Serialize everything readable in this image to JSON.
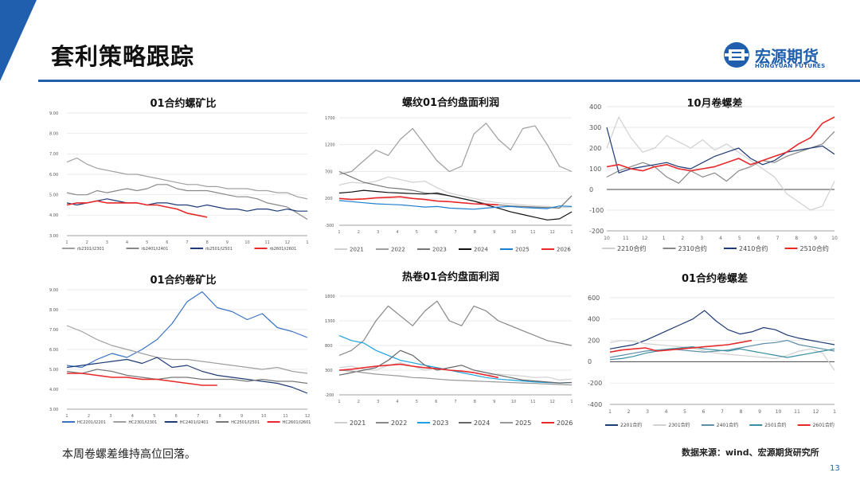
{
  "header": {
    "title": "套利策略跟踪",
    "logo_name": "宏源期货",
    "logo_sub": "HONGYUAN FUTURES",
    "accent_color": "#1f5fae"
  },
  "footer": {
    "note": "本周卷螺差维持高位回落。",
    "source": "数据来源：wind、宏源期货研究所",
    "page_number": "13"
  },
  "chart_data": [
    {
      "id": "c1",
      "type": "line",
      "title": "01合约螺矿比",
      "y_ticks": [
        "9.00",
        "8.00",
        "7.00",
        "6.00",
        "5.00",
        "4.00",
        "3.00"
      ],
      "ylim": [
        3,
        9
      ],
      "x_ticks": [
        "1",
        "2",
        "3",
        "4",
        "5",
        "6",
        "7",
        "8",
        "9",
        "10",
        "11",
        "12",
        "1"
      ],
      "series": [
        {
          "name": "rb2301/i2301",
          "color": "#a0a0a0",
          "values": [
            6.6,
            6.8,
            6.5,
            6.3,
            6.2,
            6.1,
            6.0,
            6.0,
            5.9,
            5.8,
            5.7,
            5.6,
            5.5,
            5.5,
            5.4,
            5.4,
            5.3,
            5.3,
            5.3,
            5.2,
            5.2,
            5.1,
            5.1,
            4.9,
            4.8
          ]
        },
        {
          "name": "rb2401/i2401",
          "color": "#888888",
          "values": [
            5.1,
            5.0,
            5.0,
            5.2,
            5.1,
            5.2,
            5.3,
            5.2,
            5.3,
            5.5,
            5.5,
            5.3,
            5.2,
            5.2,
            5.2,
            5.1,
            5.0,
            4.9,
            4.9,
            4.8,
            4.6,
            4.5,
            4.4,
            4.1,
            3.8
          ]
        },
        {
          "name": "rb2501/i2501",
          "color": "#1f3a75",
          "values": [
            4.6,
            4.5,
            4.6,
            4.7,
            4.8,
            4.7,
            4.6,
            4.6,
            4.5,
            4.6,
            4.6,
            4.5,
            4.5,
            4.4,
            4.5,
            4.4,
            4.3,
            4.3,
            4.2,
            4.3,
            4.3,
            4.2,
            4.3,
            4.2,
            4.2
          ]
        },
        {
          "name": "rb2601/i2601",
          "color": "#e8282b",
          "values": [
            4.5,
            4.6,
            4.6,
            4.7,
            4.6,
            4.6,
            4.6,
            4.6,
            4.5,
            4.5,
            4.4,
            4.3,
            4.1,
            4.0,
            3.9
          ]
        }
      ]
    },
    {
      "id": "c2",
      "type": "line",
      "title": "螺纹01合约盘面利润",
      "y_ticks": [
        "1700",
        "1200",
        "700",
        "200",
        "-300"
      ],
      "ylim": [
        -300,
        1700
      ],
      "x_ticks": [
        "1",
        "2",
        "3",
        "4",
        "5",
        "6",
        "7",
        "8",
        "9",
        "10",
        "11",
        "12",
        "1"
      ],
      "series": [
        {
          "name": "2021",
          "color": "#d0d0d0",
          "values": [
            450,
            500,
            480,
            520,
            600,
            550,
            500,
            520,
            400,
            300,
            250,
            200,
            150,
            120,
            100,
            80,
            60,
            50,
            30,
            40
          ]
        },
        {
          "name": "2022",
          "color": "#9e9e9e",
          "values": [
            650,
            700,
            900,
            1100,
            1000,
            1300,
            1500,
            1200,
            900,
            700,
            800,
            1400,
            1600,
            1300,
            1100,
            1500,
            1550,
            1200,
            800,
            700
          ]
        },
        {
          "name": "2023",
          "color": "#777777",
          "values": [
            700,
            600,
            500,
            450,
            400,
            380,
            350,
            300,
            280,
            250,
            200,
            150,
            100,
            80,
            60,
            50,
            40,
            30,
            20,
            250
          ]
        },
        {
          "name": "2024",
          "color": "#111111",
          "values": [
            300,
            320,
            350,
            330,
            310,
            300,
            290,
            280,
            300,
            250,
            200,
            150,
            80,
            20,
            -50,
            -100,
            -150,
            -200,
            -180,
            -50
          ]
        },
        {
          "name": "2025",
          "color": "#1a7fcf",
          "values": [
            160,
            140,
            120,
            100,
            90,
            80,
            60,
            40,
            50,
            20,
            10,
            0,
            20,
            40,
            50,
            30,
            20,
            10,
            60,
            50
          ]
        },
        {
          "name": "2026",
          "color": "#e8282b",
          "values": [
            200,
            180,
            190,
            210,
            220,
            230,
            200,
            180,
            150,
            140,
            120,
            100,
            90,
            80
          ]
        }
      ]
    },
    {
      "id": "c3",
      "type": "line",
      "title": "10月卷螺差",
      "y_ticks": [
        "400",
        "300",
        "200",
        "100",
        "0",
        "-100",
        "-200"
      ],
      "ylim": [
        -200,
        400
      ],
      "x_ticks": [
        "10",
        "11",
        "12",
        "1",
        "2",
        "3",
        "4",
        "5",
        "6",
        "7",
        "8",
        "9",
        "10"
      ],
      "series": [
        {
          "name": "2210合约",
          "color": "#d0d0d0",
          "values": [
            200,
            350,
            250,
            180,
            200,
            260,
            230,
            200,
            240,
            190,
            220,
            180,
            140,
            100,
            60,
            -20,
            -60,
            -100,
            -80,
            40
          ]
        },
        {
          "name": "2310合约",
          "color": "#888888",
          "values": [
            60,
            90,
            110,
            130,
            110,
            60,
            30,
            90,
            60,
            80,
            40,
            90,
            110,
            140,
            130,
            160,
            180,
            200,
            220,
            280
          ]
        },
        {
          "name": "2410合约",
          "color": "#1f3a75",
          "values": [
            300,
            80,
            100,
            110,
            120,
            130,
            110,
            100,
            130,
            160,
            180,
            200,
            150,
            120,
            140,
            180,
            190,
            200,
            210,
            170
          ]
        },
        {
          "name": "2510合约",
          "color": "#e8282b",
          "values": [
            110,
            120,
            100,
            90,
            110,
            120,
            100,
            90,
            100,
            110,
            130,
            150,
            120,
            140,
            160,
            180,
            220,
            250,
            320,
            350
          ]
        }
      ]
    },
    {
      "id": "c4",
      "type": "line",
      "title": "01合约卷矿比",
      "y_ticks": [
        "9.00",
        "8.00",
        "7.00",
        "6.00",
        "5.00",
        "4.00",
        "3.00"
      ],
      "ylim": [
        3,
        9
      ],
      "x_ticks": [
        "1",
        "2",
        "3",
        "4",
        "5",
        "6",
        "7",
        "8",
        "9",
        "10",
        "11",
        "12"
      ],
      "series": [
        {
          "name": "HC2201/I2201",
          "color": "#3b73c4",
          "values": [
            5.2,
            5.1,
            5.5,
            5.8,
            5.6,
            6.0,
            6.5,
            7.3,
            8.4,
            8.9,
            8.1,
            7.9,
            7.5,
            7.8,
            7.1,
            6.9,
            6.6
          ]
        },
        {
          "name": "HC2301/I2301",
          "color": "#a0a0a0",
          "values": [
            7.2,
            6.9,
            6.5,
            6.2,
            6.0,
            5.8,
            5.6,
            5.5,
            5.5,
            5.4,
            5.3,
            5.2,
            5.1,
            5.0,
            5.1,
            4.9,
            4.8
          ]
        },
        {
          "name": "HC2401/I2401",
          "color": "#1f3a75",
          "values": [
            5.1,
            5.2,
            5.3,
            5.4,
            5.5,
            5.3,
            5.6,
            5.1,
            5.2,
            4.9,
            4.7,
            4.6,
            4.5,
            4.4,
            4.3,
            4.1,
            3.8
          ]
        },
        {
          "name": "HC2501/I2501",
          "color": "#777777",
          "values": [
            4.9,
            4.8,
            5.0,
            4.9,
            4.7,
            4.6,
            4.5,
            4.6,
            4.6,
            4.5,
            4.5,
            4.5,
            4.4,
            4.5,
            4.4,
            4.4,
            4.3
          ]
        },
        {
          "name": "HC2601/I2601",
          "color": "#e8282b",
          "values": [
            4.8,
            4.8,
            4.7,
            4.6,
            4.6,
            4.5,
            4.5,
            4.4,
            4.3,
            4.2,
            4.2
          ]
        }
      ]
    },
    {
      "id": "c5",
      "type": "line",
      "title": "热卷01合约盘面利润",
      "y_ticks": [
        "1800",
        "1300",
        "800",
        "300",
        "-200"
      ],
      "ylim": [
        -200,
        1800
      ],
      "x_ticks": [
        "1",
        "2",
        "3",
        "4",
        "5",
        "6",
        "7",
        "8",
        "9",
        "10",
        "11",
        "12",
        "1"
      ],
      "series": [
        {
          "name": "2021",
          "color": "#d0d0d0",
          "values": [
            350,
            380,
            320,
            300,
            400,
            450,
            380,
            300,
            350,
            300,
            280,
            250,
            200,
            220,
            200,
            180,
            150,
            160,
            100,
            120
          ]
        },
        {
          "name": "2022",
          "color": "#888888",
          "values": [
            600,
            700,
            900,
            1300,
            1600,
            1400,
            1200,
            1500,
            1700,
            1300,
            1200,
            1600,
            1500,
            1300,
            1200,
            1100,
            1000,
            900,
            850,
            800
          ]
        },
        {
          "name": "2023",
          "color": "#1aa3e0",
          "values": [
            1000,
            900,
            850,
            700,
            600,
            500,
            450,
            400,
            350,
            300,
            250,
            200,
            150,
            120,
            100,
            80,
            60,
            50,
            40,
            50
          ]
        },
        {
          "name": "2024",
          "color": "#666666",
          "values": [
            200,
            250,
            300,
            350,
            500,
            700,
            600,
            400,
            300,
            350,
            400,
            300,
            250,
            200,
            150,
            100,
            80,
            60,
            40,
            50
          ]
        },
        {
          "name": "2025",
          "color": "#999999",
          "values": [
            300,
            280,
            250,
            220,
            200,
            180,
            150,
            140,
            120,
            100,
            90,
            80,
            70,
            60,
            50,
            40,
            30,
            20,
            10,
            0
          ]
        },
        {
          "name": "2026",
          "color": "#e8282b",
          "values": [
            300,
            320,
            350,
            380,
            400,
            420,
            380,
            350,
            330,
            300,
            280,
            250,
            200,
            150
          ]
        }
      ]
    },
    {
      "id": "c6",
      "type": "line",
      "title": "01合约卷螺差",
      "y_ticks": [
        "600",
        "400",
        "200",
        "0",
        "-200",
        "-400"
      ],
      "ylim": [
        -400,
        600
      ],
      "x_ticks": [
        "1",
        "2",
        "3",
        "4",
        "5",
        "6",
        "7",
        "8",
        "9",
        "10",
        "11",
        "12",
        "1"
      ],
      "series": [
        {
          "name": "2201合约",
          "color": "#1f3a75",
          "values": [
            120,
            140,
            160,
            200,
            250,
            300,
            350,
            400,
            480,
            380,
            300,
            260,
            280,
            320,
            300,
            250,
            220,
            200,
            180,
            160
          ]
        },
        {
          "name": "2301合约",
          "color": "#d0d0d0",
          "values": [
            180,
            200,
            190,
            170,
            160,
            150,
            140,
            130,
            100,
            80,
            70,
            60,
            50,
            40,
            30,
            60,
            100,
            120,
            80,
            -80
          ]
        },
        {
          "name": "2401合约",
          "color": "#5d8fa8",
          "values": [
            40,
            60,
            80,
            100,
            110,
            120,
            110,
            100,
            90,
            100,
            110,
            130,
            150,
            170,
            180,
            200,
            160,
            140,
            120,
            100
          ]
        },
        {
          "name": "2501合约",
          "color": "#3a8ea1",
          "values": [
            20,
            30,
            50,
            80,
            100,
            120,
            130,
            140,
            120,
            110,
            100,
            120,
            100,
            80,
            60,
            40,
            60,
            80,
            100,
            120
          ]
        },
        {
          "name": "2601合约",
          "color": "#e8282b",
          "values": [
            90,
            110,
            120,
            130,
            100,
            110,
            120,
            130,
            140,
            150,
            160,
            180,
            200
          ]
        }
      ]
    }
  ]
}
